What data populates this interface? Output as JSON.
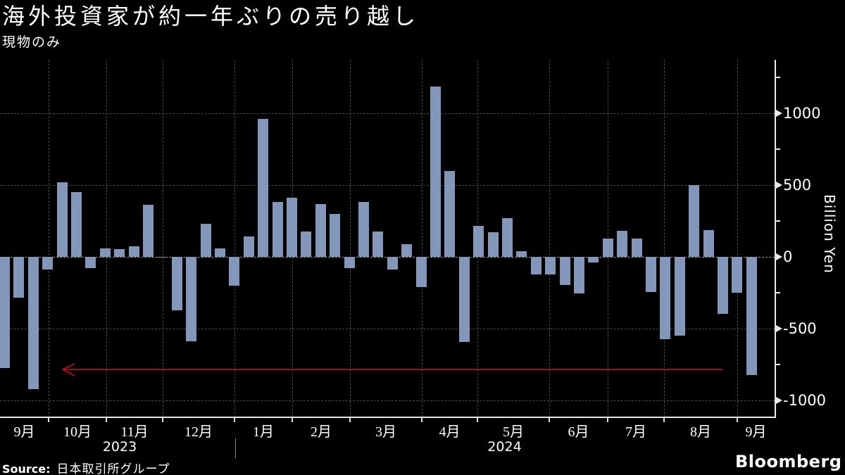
{
  "title": "海外投資家が約一年ぶりの売り越し",
  "subtitle": "現物のみ",
  "source": {
    "label": "Source:",
    "text": "日本取引所グループ"
  },
  "branding": {
    "logo": "Bloomberg"
  },
  "colors": {
    "background": "#000000",
    "bar": "#8297b9",
    "grid": "#4b4b4b",
    "zero_grid": "#9c9c9c",
    "axis": "#e8e8e8",
    "text": "#ffffff",
    "annotation_red": "#c41111"
  },
  "chart_data": {
    "type": "bar",
    "title": "海外投資家が約一年ぶりの売り越し",
    "subtitle": "現物のみ",
    "frequency": "weekly",
    "unit": "Billion Yen",
    "y_axis": {
      "label": "Billion Yen",
      "ticks": [
        1000,
        500,
        0,
        -500,
        -1000
      ],
      "minor_ticks": [
        1250,
        750,
        250,
        -250,
        -750
      ],
      "ylim": [
        -1115,
        1370
      ],
      "grid": true
    },
    "x_axis": {
      "months": [
        "9月",
        "10月",
        "11月",
        "12月",
        "1月",
        "2月",
        "3月",
        "4月",
        "5月",
        "6月",
        "7月",
        "8月",
        "9月"
      ],
      "years": [
        "2023",
        "2024"
      ]
    },
    "values": [
      -775,
      -285,
      -920,
      -90,
      520,
      450,
      -80,
      60,
      55,
      75,
      360,
      -5,
      -370,
      -585,
      230,
      60,
      -200,
      140,
      960,
      380,
      410,
      175,
      365,
      300,
      -80,
      380,
      175,
      -90,
      90,
      -210,
      1185,
      595,
      -590,
      215,
      170,
      270,
      40,
      -120,
      -120,
      -195,
      -255,
      -40,
      125,
      180,
      125,
      -245,
      -570,
      -550,
      500,
      185,
      -395,
      -250,
      -820
    ],
    "annotation": {
      "shape": "arrow",
      "direction": "left",
      "level_billion_yen": -785,
      "color": "#c41111"
    }
  }
}
